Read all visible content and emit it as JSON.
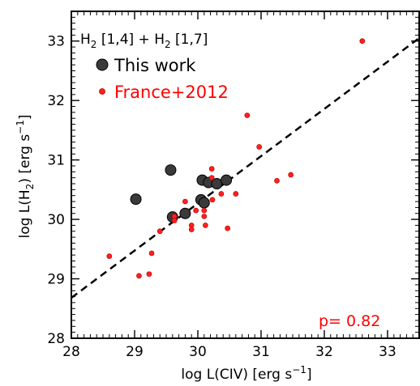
{
  "chart_data": {
    "type": "scatter",
    "xlabel_main": "log L(CIV) [erg s",
    "xlabel_sup": "−1",
    "xlabel_end": "]",
    "ylabel_main": "log L(H",
    "ylabel_sub": "2",
    "ylabel_mid": ") [erg s",
    "ylabel_sup": "−1",
    "ylabel_end": "]",
    "xlim": [
      28,
      33.5
    ],
    "ylim": [
      28,
      33.5
    ],
    "x_ticks": [
      28,
      29,
      30,
      31,
      32,
      33
    ],
    "y_ticks": [
      28,
      29,
      30,
      31,
      32,
      33
    ],
    "x_tick_labels": [
      "28",
      "29",
      "30",
      "31",
      "32",
      "33"
    ],
    "y_tick_labels": [
      "28",
      "29",
      "30",
      "31",
      "32",
      "33"
    ],
    "annotation": {
      "p1": "H",
      "s1": "2",
      "p2": " [1,4] + H",
      "s2": "2",
      "p3": " [1,7]"
    },
    "p_value_label": "p=  0.82",
    "legend_placement": "upper-left",
    "fit_line": {
      "style": "dashed",
      "color": "#000000",
      "points": [
        [
          28,
          28.68
        ],
        [
          33.5,
          33.05
        ]
      ]
    },
    "series": [
      {
        "name": "This work",
        "color": "#000000",
        "fill": "#3a3a3a",
        "marker": "large-circle",
        "points": [
          [
            29.02,
            30.34
          ],
          [
            29.57,
            30.83
          ],
          [
            29.6,
            30.04
          ],
          [
            29.8,
            30.1
          ],
          [
            30.07,
            30.66
          ],
          [
            30.05,
            30.33
          ],
          [
            30.1,
            30.28
          ],
          [
            30.17,
            30.62
          ],
          [
            30.3,
            30.6
          ],
          [
            30.45,
            30.66
          ]
        ]
      },
      {
        "name": "France+2012",
        "color": "#ff0000",
        "fill": "#ff2020",
        "marker": "small-circle",
        "points": [
          [
            32.6,
            33.0
          ],
          [
            30.78,
            31.75
          ],
          [
            30.97,
            31.22
          ],
          [
            30.22,
            30.85
          ],
          [
            30.22,
            30.7
          ],
          [
            31.25,
            30.65
          ],
          [
            31.47,
            30.75
          ],
          [
            30.6,
            30.43
          ],
          [
            30.37,
            30.43
          ],
          [
            30.23,
            30.33
          ],
          [
            29.97,
            30.15
          ],
          [
            30.1,
            30.15
          ],
          [
            30.1,
            30.05
          ],
          [
            29.8,
            30.3
          ],
          [
            29.63,
            30.05
          ],
          [
            29.63,
            29.98
          ],
          [
            29.9,
            29.9
          ],
          [
            29.9,
            29.83
          ],
          [
            30.12,
            29.9
          ],
          [
            30.47,
            29.85
          ],
          [
            29.4,
            29.8
          ],
          [
            29.27,
            29.43
          ],
          [
            28.6,
            29.38
          ],
          [
            29.07,
            29.05
          ],
          [
            29.23,
            29.08
          ]
        ]
      }
    ]
  }
}
